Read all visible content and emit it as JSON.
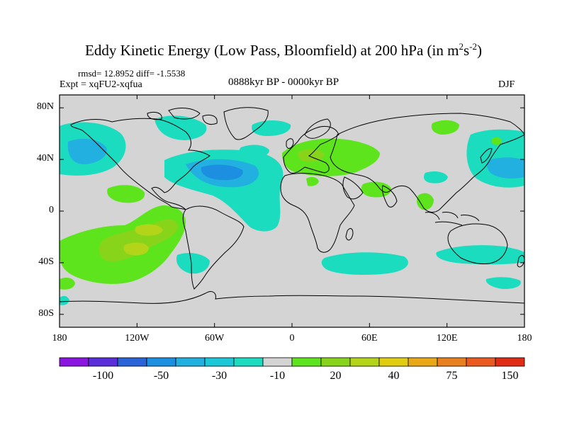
{
  "title": {
    "main": "Eddy Kinetic Energy (Low Pass, Bloomfield) at 200 hPa (in m",
    "sup1": "2",
    "mid": "s",
    "sup2": "-2",
    "end": ")"
  },
  "stats": "rmsd= 12.8952  diff= -1.5538",
  "experiment": "Expt = xqFU2-xqfua",
  "period": "0888kyr BP - 0000kyr BP",
  "season": "DJF",
  "axes": {
    "y_labels": [
      {
        "text": "80N",
        "lat": 80
      },
      {
        "text": "40N",
        "lat": 40
      },
      {
        "text": "0",
        "lat": 0
      },
      {
        "text": "40S",
        "lat": -40
      },
      {
        "text": "80S",
        "lat": -80
      }
    ],
    "x_labels": [
      {
        "text": "180",
        "lon": -180
      },
      {
        "text": "120W",
        "lon": -120
      },
      {
        "text": "60W",
        "lon": -60
      },
      {
        "text": "0",
        "lon": 0
      },
      {
        "text": "60E",
        "lon": 60
      },
      {
        "text": "120E",
        "lon": 120
      },
      {
        "text": "180",
        "lon": 180
      }
    ]
  },
  "colorbar": {
    "colors": [
      "#8a16e0",
      "#5a2ed8",
      "#2a64d8",
      "#1c8fe0",
      "#22b0e0",
      "#1cc8d8",
      "#1cdcc0",
      "#d4d4d4",
      "#5ee41c",
      "#88d41a",
      "#b4d41a",
      "#e0cc10",
      "#e8a818",
      "#e88020",
      "#e85a20",
      "#e02c14"
    ],
    "labels": [
      {
        "text": "-100",
        "index": 2
      },
      {
        "text": "-50",
        "index": 4
      },
      {
        "text": "-30",
        "index": 6
      },
      {
        "text": "-10",
        "index": 8
      },
      {
        "text": "20",
        "index": 10
      },
      {
        "text": "40",
        "index": 12
      },
      {
        "text": "75",
        "index": 14
      },
      {
        "text": "150",
        "index": 16
      }
    ]
  },
  "colors": {
    "background": "#d4d4d4",
    "coast": "#000000"
  }
}
